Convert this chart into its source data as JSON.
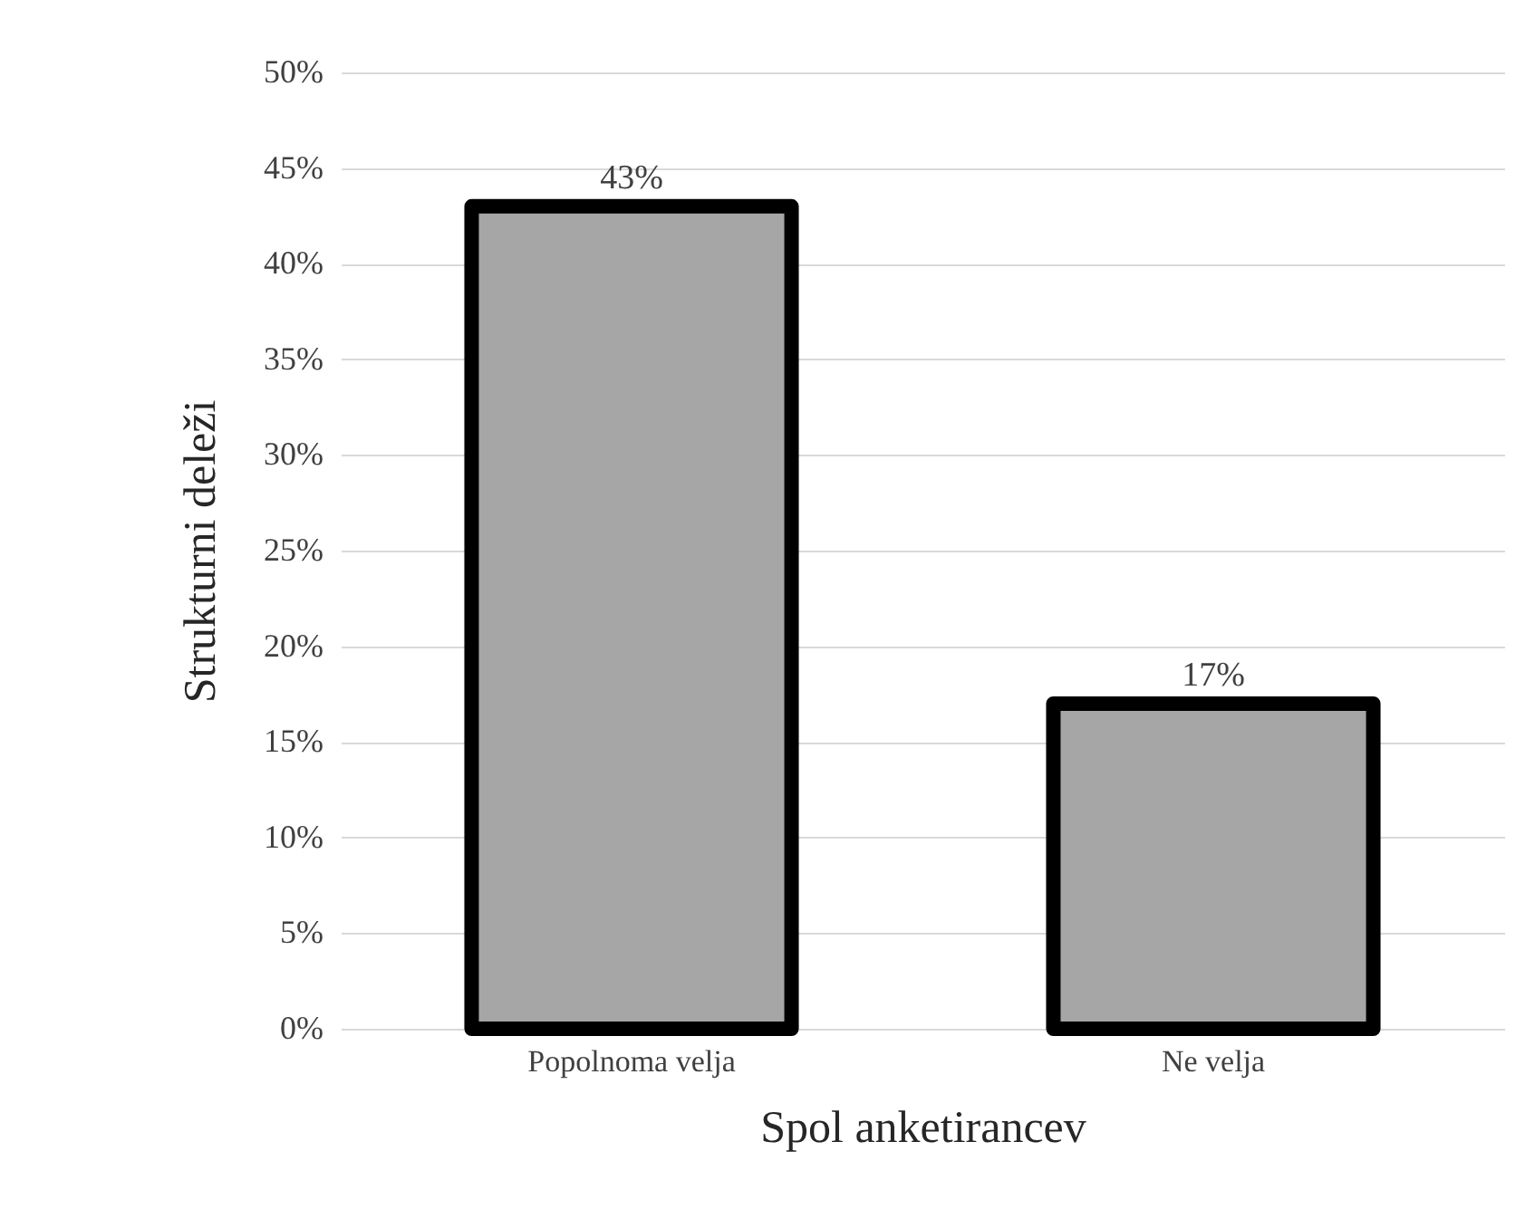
{
  "chart_data": {
    "type": "bar",
    "xlabel": "Spol anketirancev",
    "ylabel": "Strukturni deleži",
    "categories": [
      "Popolnoma velja",
      "Ne velja"
    ],
    "values": [
      43,
      17
    ],
    "value_labels": [
      "43%",
      "17%"
    ],
    "color": "#a6a6a6",
    "ylim": [
      0,
      50
    ],
    "yticks": [
      {
        "value": 0,
        "label": "0%"
      },
      {
        "value": 5,
        "label": "5%"
      },
      {
        "value": 10,
        "label": "10%"
      },
      {
        "value": 15,
        "label": "15%"
      },
      {
        "value": 20,
        "label": "20%"
      },
      {
        "value": 25,
        "label": "25%"
      },
      {
        "value": 30,
        "label": "30%"
      },
      {
        "value": 35,
        "label": "35%"
      },
      {
        "value": 40,
        "label": "40%"
      },
      {
        "value": 45,
        "label": "45%"
      },
      {
        "value": 50,
        "label": "50%"
      }
    ],
    "grid": "y"
  }
}
